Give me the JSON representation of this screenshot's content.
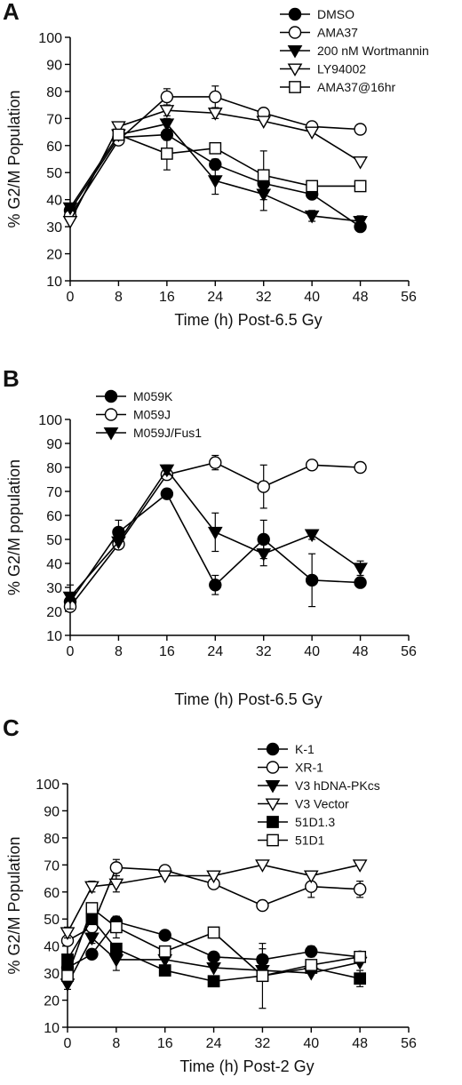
{
  "chart_data": [
    {
      "panel": "A",
      "type": "line",
      "xlabel": "Time (h) Post-6.5 Gy",
      "ylabel": "% G2/M Population",
      "xlim": [
        0,
        56
      ],
      "ylim": [
        10,
        100
      ],
      "xticks": [
        0,
        8,
        16,
        24,
        32,
        40,
        48,
        56
      ],
      "yticks": [
        10,
        20,
        30,
        40,
        50,
        60,
        70,
        80,
        90,
        100
      ],
      "grid": false,
      "legend_position": "top-right",
      "series": [
        {
          "name": "DMSO",
          "marker": "circle-filled",
          "x": [
            0,
            8,
            16,
            24,
            32,
            40,
            48
          ],
          "y": [
            36,
            63,
            64,
            53,
            46,
            42,
            30
          ],
          "err": [
            1,
            1,
            2,
            2,
            2,
            1,
            1
          ]
        },
        {
          "name": "AMA37",
          "marker": "circle-open",
          "x": [
            0,
            8,
            16,
            24,
            32,
            40,
            48
          ],
          "y": [
            34,
            62,
            78,
            78,
            72,
            67,
            66
          ],
          "err": [
            1,
            1,
            3,
            4,
            1,
            1,
            1
          ]
        },
        {
          "name": "200 nM Wortmannin",
          "marker": "triangle-down-filled",
          "x": [
            0,
            8,
            16,
            24,
            32,
            40,
            48
          ],
          "y": [
            37,
            64,
            68,
            47,
            42,
            34,
            32
          ],
          "err": [
            1,
            1,
            2,
            5,
            6,
            2,
            2
          ]
        },
        {
          "name": "LY94002",
          "marker": "triangle-down-open",
          "x": [
            0,
            8,
            16,
            24,
            32,
            40,
            48
          ],
          "y": [
            32,
            67,
            73,
            72,
            69,
            65,
            54
          ],
          "err": [
            1,
            1,
            2,
            2,
            1,
            1,
            1
          ]
        },
        {
          "name": "AMA37@16hr",
          "marker": "square-open",
          "x": [
            8,
            16,
            24,
            32,
            40,
            48
          ],
          "y": [
            64,
            57,
            59,
            49,
            45,
            45
          ],
          "err": [
            1,
            6,
            1,
            9,
            1,
            1
          ]
        }
      ]
    },
    {
      "panel": "B",
      "type": "line",
      "xlabel": "Time (h) Post-6.5 Gy",
      "ylabel": "% G2/M population",
      "xlim": [
        0,
        56
      ],
      "ylim": [
        10,
        100
      ],
      "xticks": [
        0,
        8,
        16,
        24,
        32,
        40,
        48,
        56
      ],
      "yticks": [
        10,
        20,
        30,
        40,
        50,
        60,
        70,
        80,
        90,
        100
      ],
      "grid": false,
      "legend_position": "top-left",
      "series": [
        {
          "name": "M059K",
          "marker": "circle-filled",
          "x": [
            0,
            8,
            16,
            24,
            32,
            40,
            48
          ],
          "y": [
            24,
            53,
            69,
            31,
            50,
            33,
            32
          ],
          "err": [
            1,
            5,
            2,
            4,
            8,
            11,
            1
          ]
        },
        {
          "name": "M059J",
          "marker": "circle-open",
          "x": [
            0,
            8,
            16,
            24,
            32,
            40,
            48
          ],
          "y": [
            22,
            48,
            77,
            82,
            72,
            81,
            80
          ],
          "err": [
            1,
            1,
            2,
            3,
            9,
            1,
            1
          ]
        },
        {
          "name": "M059J/Fus1",
          "marker": "triangle-down-filled",
          "x": [
            0,
            8,
            16,
            24,
            32,
            40,
            48
          ],
          "y": [
            26,
            49,
            79,
            53,
            44,
            52,
            38
          ],
          "err": [
            5,
            1,
            2,
            8,
            5,
            2,
            3
          ]
        }
      ]
    },
    {
      "panel": "C",
      "type": "line",
      "xlabel": "Time (h) Post-2 Gy",
      "ylabel": "% G2/M Population",
      "xlim": [
        0,
        56
      ],
      "ylim": [
        10,
        100
      ],
      "xticks": [
        0,
        8,
        16,
        24,
        32,
        40,
        48,
        56
      ],
      "yticks": [
        10,
        20,
        30,
        40,
        50,
        60,
        70,
        80,
        90,
        100
      ],
      "grid": false,
      "legend_position": "top-right",
      "series": [
        {
          "name": "K-1",
          "marker": "circle-filled",
          "x": [
            0,
            4,
            8,
            16,
            24,
            32,
            40,
            48
          ],
          "y": [
            32,
            37,
            49,
            44,
            36,
            35,
            38,
            36
          ],
          "err": [
            1,
            1,
            2,
            1,
            1,
            4,
            2,
            1
          ]
        },
        {
          "name": "XR-1",
          "marker": "circle-open",
          "x": [
            0,
            4,
            8,
            16,
            24,
            32,
            40,
            48
          ],
          "y": [
            42,
            47,
            69,
            68,
            63,
            55,
            62,
            61
          ],
          "err": [
            1,
            3,
            3,
            1,
            1,
            1,
            4,
            3
          ]
        },
        {
          "name": "V3 hDNA-PKcs",
          "marker": "triangle-down-filled",
          "x": [
            0,
            4,
            8,
            16,
            24,
            32,
            40,
            48
          ],
          "y": [
            26,
            43,
            35,
            35,
            32,
            31,
            30,
            34
          ],
          "err": [
            2,
            2,
            4,
            1,
            1,
            1,
            1,
            1
          ]
        },
        {
          "name": "V3 Vector",
          "marker": "triangle-down-open",
          "x": [
            0,
            4,
            8,
            16,
            24,
            32,
            40,
            48
          ],
          "y": [
            45,
            62,
            63,
            66,
            66,
            70,
            66,
            70
          ],
          "err": [
            2,
            2,
            3,
            1,
            1,
            1,
            1,
            1
          ]
        },
        {
          "name": "51D1.3",
          "marker": "square-filled",
          "x": [
            0,
            4,
            8,
            16,
            24,
            32,
            40,
            48
          ],
          "y": [
            35,
            50,
            39,
            31,
            27,
            29,
            32,
            28
          ],
          "err": [
            1,
            2,
            2,
            1,
            1,
            2,
            1,
            3
          ]
        },
        {
          "name": "51D1",
          "marker": "square-open",
          "x": [
            0,
            4,
            8,
            16,
            24,
            32,
            40,
            48
          ],
          "y": [
            29,
            54,
            47,
            38,
            45,
            29,
            33,
            36
          ],
          "err": [
            1,
            1,
            4,
            1,
            1,
            12,
            1,
            1
          ]
        }
      ]
    }
  ]
}
